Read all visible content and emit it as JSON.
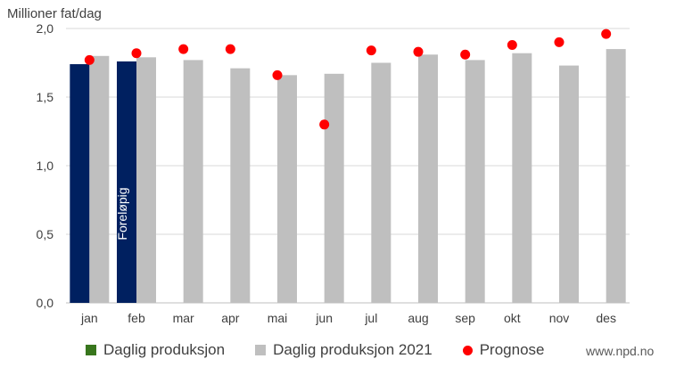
{
  "chart_data": {
    "type": "bar",
    "ylabel": "Millioner fat/dag",
    "ylim": [
      0,
      2.0
    ],
    "yticks": [
      "0,0",
      "0,5",
      "1,0",
      "1,5",
      "2,0"
    ],
    "ytick_values": [
      0,
      0.5,
      1.0,
      1.5,
      2.0
    ],
    "grid": true,
    "categories": [
      "jan",
      "feb",
      "mar",
      "apr",
      "mai",
      "jun",
      "jul",
      "aug",
      "sep",
      "okt",
      "nov",
      "des"
    ],
    "series": [
      {
        "name": "Daglig produksjon",
        "kind": "bar",
        "color": "#002060",
        "legend_color": "#38761D",
        "values": [
          1.74,
          1.76,
          null,
          null,
          null,
          null,
          null,
          null,
          null,
          null,
          null,
          null
        ]
      },
      {
        "name": "Daglig produksjon 2021",
        "kind": "bar",
        "color": "#BFBFBF",
        "values": [
          1.8,
          1.79,
          1.77,
          1.71,
          1.66,
          1.67,
          1.75,
          1.81,
          1.77,
          1.82,
          1.73,
          1.85
        ]
      },
      {
        "name": "Prognose",
        "kind": "marker",
        "color": "#FF0000",
        "values": [
          1.77,
          1.82,
          1.85,
          1.85,
          1.66,
          1.3,
          1.84,
          1.83,
          1.81,
          1.88,
          1.9,
          1.96
        ]
      }
    ],
    "annotation": {
      "text": "Foreløpig",
      "category": "feb"
    },
    "legend_position": "bottom"
  },
  "footer": {
    "source": "www.npd.no"
  }
}
